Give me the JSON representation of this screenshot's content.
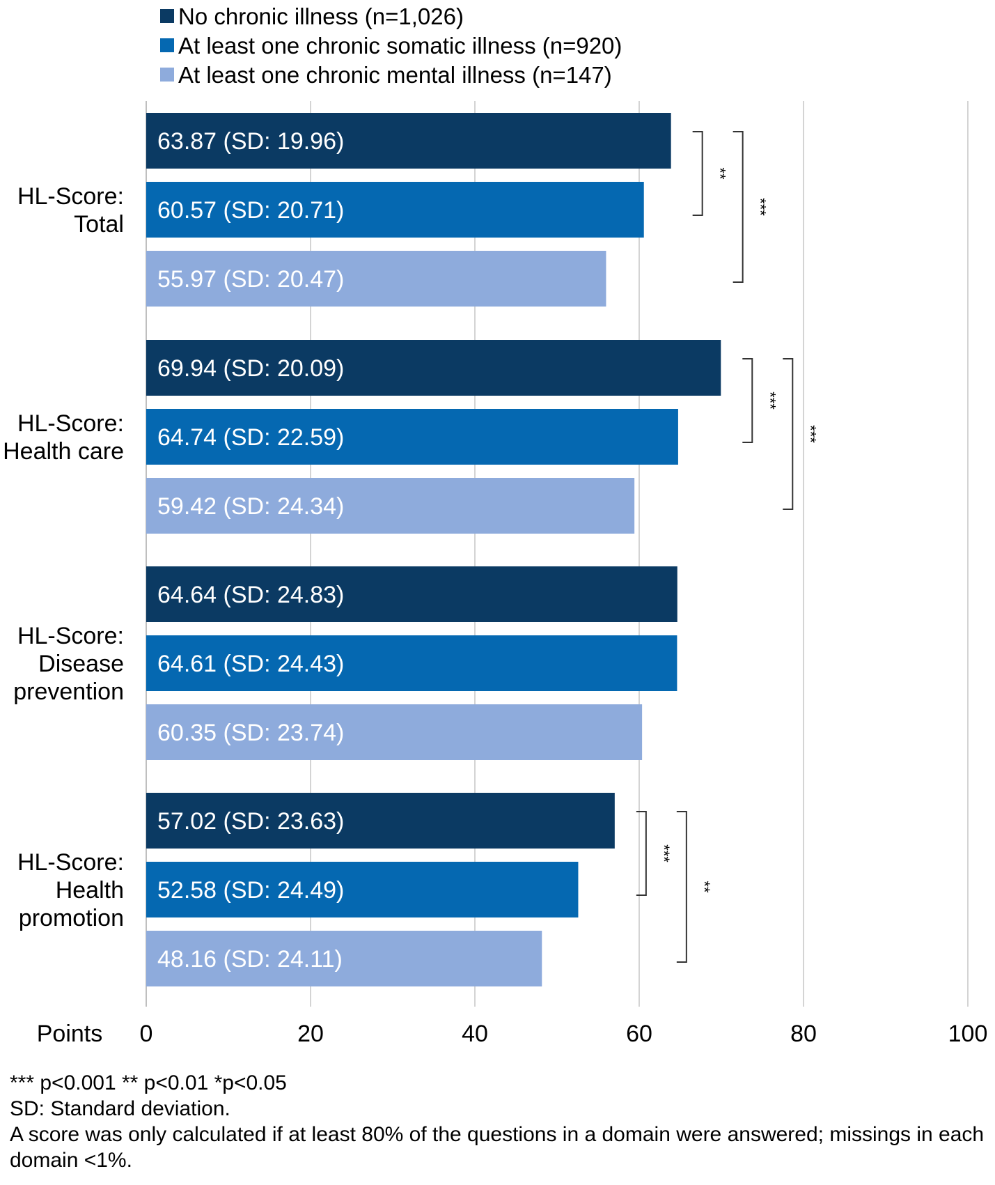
{
  "chart_data": {
    "type": "bar",
    "orientation": "horizontal",
    "title": "",
    "xlabel": "Points",
    "ylabel": "",
    "xlim": [
      0,
      100
    ],
    "xticks": [
      0,
      20,
      40,
      60,
      80,
      100
    ],
    "grid": true,
    "legend_position": "top-left",
    "series": [
      {
        "name": "No chronic illness (n=1,026)",
        "color": "#0b3a63"
      },
      {
        "name": "At least one chronic somatic illness (n=920)",
        "color": "#0568b1"
      },
      {
        "name": "At least one chronic mental illness (n=147)",
        "color": "#8eabdc"
      }
    ],
    "categories": [
      {
        "label": [
          "HL-Score:",
          "Total"
        ],
        "bars": [
          {
            "value": 63.87,
            "text": "63.87 (SD: 19.96)"
          },
          {
            "value": 60.57,
            "text": "60.57  (SD: 20.71)"
          },
          {
            "value": 55.97,
            "text": "55.97  (SD: 20.47)"
          }
        ],
        "significance": [
          {
            "from": 0,
            "to": 1,
            "label": "**"
          },
          {
            "from": 0,
            "to": 2,
            "label": "***"
          }
        ]
      },
      {
        "label": [
          "HL-Score:",
          "Health care"
        ],
        "bars": [
          {
            "value": 69.94,
            "text": "69.94 (SD: 20.09)"
          },
          {
            "value": 64.74,
            "text": "64.74 (SD: 22.59)"
          },
          {
            "value": 59.42,
            "text": "59.42 (SD: 24.34)"
          }
        ],
        "significance": [
          {
            "from": 0,
            "to": 1,
            "label": "***"
          },
          {
            "from": 0,
            "to": 2,
            "label": "***"
          }
        ]
      },
      {
        "label": [
          "HL-Score:",
          "Disease",
          "prevention"
        ],
        "bars": [
          {
            "value": 64.64,
            "text": "64.64 (SD: 24.83)"
          },
          {
            "value": 64.61,
            "text": "64.61 (SD: 24.43)"
          },
          {
            "value": 60.35,
            "text": "60.35 (SD: 23.74)"
          }
        ],
        "significance": []
      },
      {
        "label": [
          "HL-Score:",
          "Health",
          "promotion"
        ],
        "bars": [
          {
            "value": 57.02,
            "text": "57.02 (SD: 23.63)"
          },
          {
            "value": 52.58,
            "text": "52.58 (SD: 24.49)"
          },
          {
            "value": 48.16,
            "text": "48.16 (SD: 24.11)"
          }
        ],
        "significance": [
          {
            "from": 0,
            "to": 1,
            "label": "***"
          },
          {
            "from": 0,
            "to": 2,
            "label": "**"
          }
        ]
      }
    ]
  },
  "footnotes": {
    "line1": "*** p<0.001 ** p<0.01 *p<0.05",
    "line2": "SD: Standard deviation.",
    "line3": "A score was only calculated if at least 80% of the questions in a domain were answered; missings in each domain <1%."
  }
}
